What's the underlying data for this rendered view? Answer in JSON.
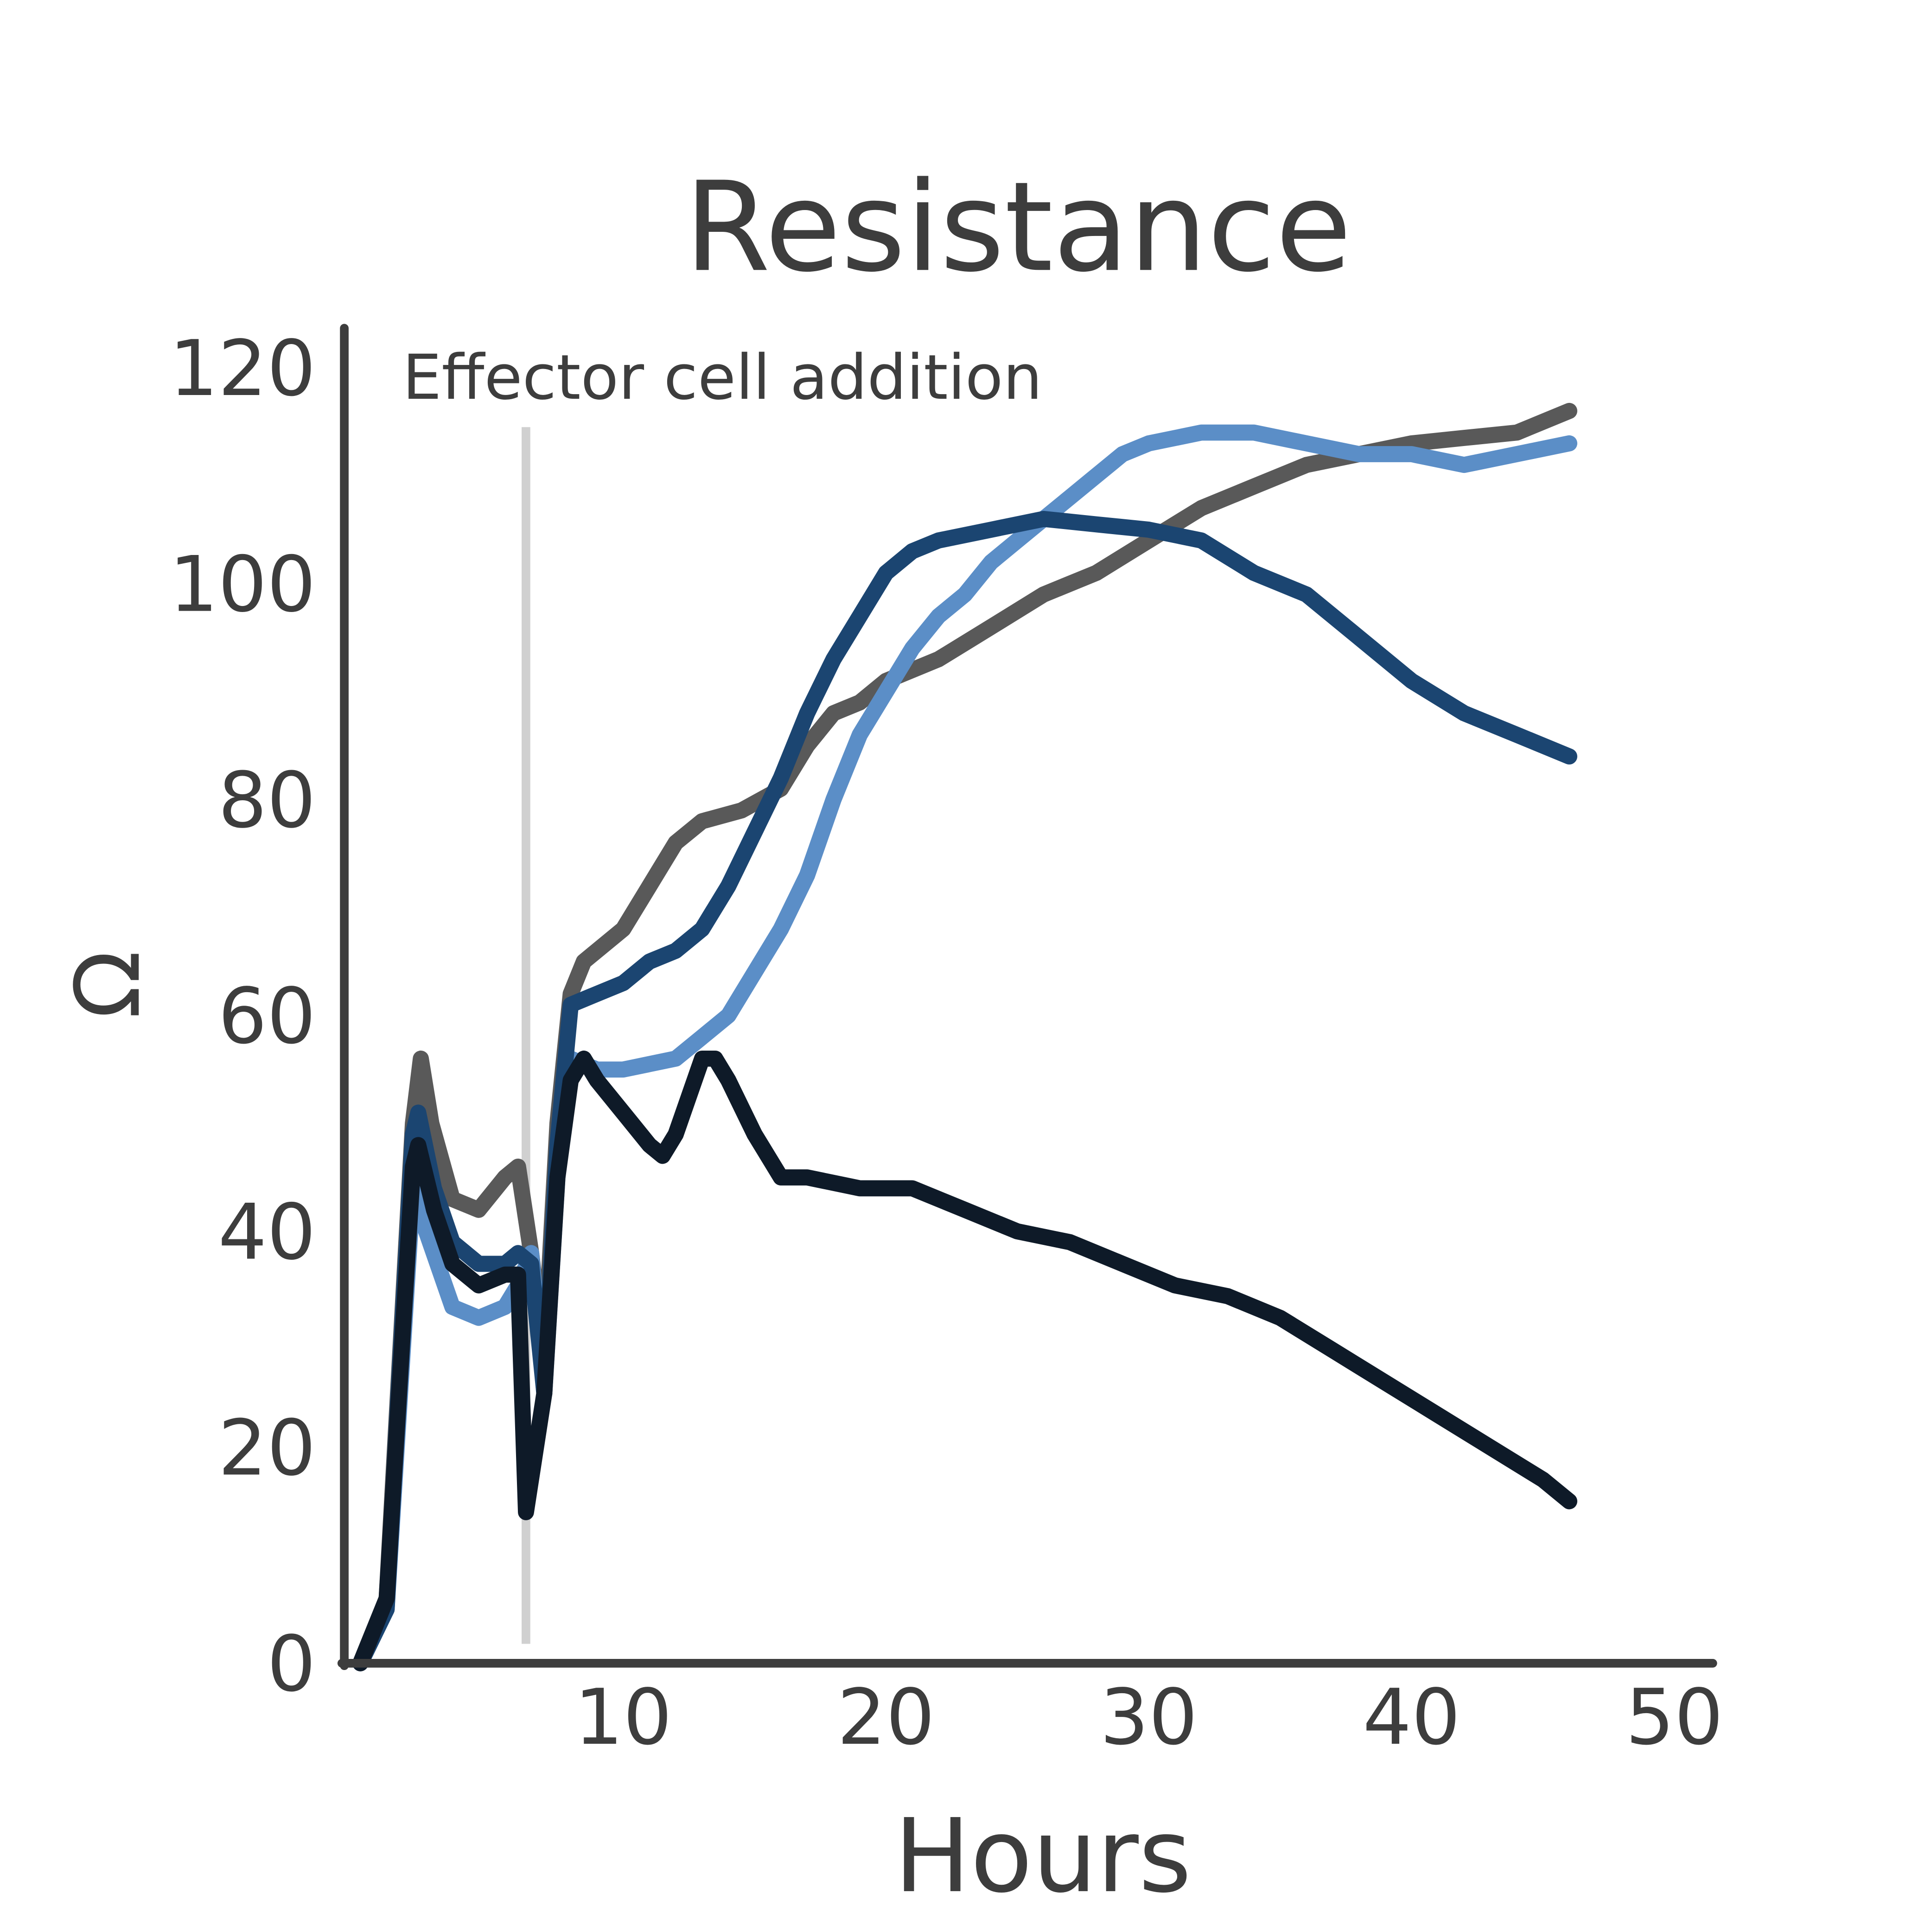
{
  "chart_data": {
    "type": "line",
    "title": "Resistance",
    "xlabel": "Hours",
    "ylabel": "Ω",
    "xlim": [
      0,
      50
    ],
    "ylim": [
      0,
      120
    ],
    "x_ticks": [
      "10",
      "20",
      "30",
      "40",
      "50"
    ],
    "y_ticks": [
      "0",
      "20",
      "40",
      "60",
      "80",
      "100",
      "120"
    ],
    "grid": false,
    "annotation": {
      "text": "Effector cell addition",
      "x": 6.3
    },
    "annotation_color": "#d0d0d0",
    "series": [
      {
        "color": "#595959",
        "points": [
          [
            0,
            0
          ],
          [
            1,
            6
          ],
          [
            2,
            50
          ],
          [
            2.3,
            56
          ],
          [
            2.7,
            50
          ],
          [
            3.5,
            43
          ],
          [
            4.5,
            42
          ],
          [
            5.5,
            45
          ],
          [
            6,
            46
          ],
          [
            6.5,
            38
          ],
          [
            7,
            28
          ],
          [
            7.5,
            50
          ],
          [
            8,
            62
          ],
          [
            8.5,
            65
          ],
          [
            10,
            68
          ],
          [
            11,
            72
          ],
          [
            12,
            76
          ],
          [
            13,
            78
          ],
          [
            14.5,
            79
          ],
          [
            16,
            81
          ],
          [
            17,
            85
          ],
          [
            18,
            88
          ],
          [
            19,
            89
          ],
          [
            20,
            91
          ],
          [
            22,
            93
          ],
          [
            24,
            96
          ],
          [
            26,
            99
          ],
          [
            28,
            101
          ],
          [
            30,
            104
          ],
          [
            32,
            107
          ],
          [
            34,
            109
          ],
          [
            36,
            111
          ],
          [
            38,
            112
          ],
          [
            40,
            113
          ],
          [
            42,
            113.5
          ],
          [
            44,
            114
          ],
          [
            46,
            116
          ]
        ]
      },
      {
        "color": "#5b8ec7",
        "points": [
          [
            0,
            0
          ],
          [
            1,
            5
          ],
          [
            2,
            44
          ],
          [
            2.5,
            40
          ],
          [
            3.5,
            33
          ],
          [
            4.5,
            32
          ],
          [
            5.5,
            33
          ],
          [
            6,
            35
          ],
          [
            6.5,
            38
          ],
          [
            7,
            25
          ],
          [
            7.5,
            45
          ],
          [
            8,
            56
          ],
          [
            9,
            55
          ],
          [
            10,
            55
          ],
          [
            11,
            55.5
          ],
          [
            12,
            56
          ],
          [
            13,
            58
          ],
          [
            14,
            60
          ],
          [
            15,
            64
          ],
          [
            16,
            68
          ],
          [
            17,
            73
          ],
          [
            18,
            80
          ],
          [
            19,
            86
          ],
          [
            20,
            90
          ],
          [
            21,
            94
          ],
          [
            22,
            97
          ],
          [
            23,
            99
          ],
          [
            24,
            102
          ],
          [
            25,
            104
          ],
          [
            26,
            106
          ],
          [
            27,
            108
          ],
          [
            28,
            110
          ],
          [
            29,
            112
          ],
          [
            30,
            113
          ],
          [
            32,
            114
          ],
          [
            34,
            114
          ],
          [
            36,
            113
          ],
          [
            38,
            112
          ],
          [
            40,
            112
          ],
          [
            42,
            111
          ],
          [
            44,
            112
          ],
          [
            46,
            113
          ]
        ]
      },
      {
        "color": "#1b4571",
        "points": [
          [
            0,
            0
          ],
          [
            1,
            5
          ],
          [
            2,
            49
          ],
          [
            2.2,
            51
          ],
          [
            2.8,
            44
          ],
          [
            3.5,
            39
          ],
          [
            4.5,
            37
          ],
          [
            5.5,
            37
          ],
          [
            6,
            38
          ],
          [
            6.5,
            37
          ],
          [
            7,
            25
          ],
          [
            7.5,
            48
          ],
          [
            8,
            61
          ],
          [
            9,
            62
          ],
          [
            10,
            63
          ],
          [
            11,
            65
          ],
          [
            12,
            66
          ],
          [
            13,
            68
          ],
          [
            14,
            72
          ],
          [
            15,
            77
          ],
          [
            16,
            82
          ],
          [
            17,
            88
          ],
          [
            18,
            93
          ],
          [
            19,
            97
          ],
          [
            20,
            101
          ],
          [
            21,
            103
          ],
          [
            22,
            104
          ],
          [
            24,
            105
          ],
          [
            26,
            106
          ],
          [
            28,
            105.5
          ],
          [
            30,
            105
          ],
          [
            32,
            104
          ],
          [
            34,
            101
          ],
          [
            36,
            99
          ],
          [
            38,
            95
          ],
          [
            40,
            91
          ],
          [
            42,
            88
          ],
          [
            44,
            86
          ],
          [
            46,
            84
          ]
        ]
      },
      {
        "color": "#0e1a28",
        "points": [
          [
            0,
            0
          ],
          [
            1,
            6
          ],
          [
            2,
            46
          ],
          [
            2.2,
            48
          ],
          [
            2.8,
            42
          ],
          [
            3.5,
            37
          ],
          [
            4.5,
            35
          ],
          [
            5.5,
            36
          ],
          [
            6,
            36
          ],
          [
            6.3,
            14
          ],
          [
            7,
            25
          ],
          [
            7.5,
            45
          ],
          [
            8,
            54
          ],
          [
            8.5,
            56
          ],
          [
            9,
            54
          ],
          [
            10,
            51
          ],
          [
            11,
            48
          ],
          [
            11.5,
            47
          ],
          [
            12,
            49
          ],
          [
            13,
            56
          ],
          [
            13.5,
            56
          ],
          [
            14,
            54
          ],
          [
            15,
            49
          ],
          [
            16,
            45
          ],
          [
            17,
            45
          ],
          [
            19,
            44
          ],
          [
            21,
            44
          ],
          [
            23,
            42
          ],
          [
            25,
            40
          ],
          [
            27,
            39
          ],
          [
            29,
            37
          ],
          [
            31,
            35
          ],
          [
            33,
            34
          ],
          [
            35,
            32
          ],
          [
            37,
            29
          ],
          [
            39,
            26
          ],
          [
            41,
            23
          ],
          [
            43,
            20
          ],
          [
            45,
            17
          ],
          [
            46,
            15
          ]
        ]
      }
    ]
  }
}
